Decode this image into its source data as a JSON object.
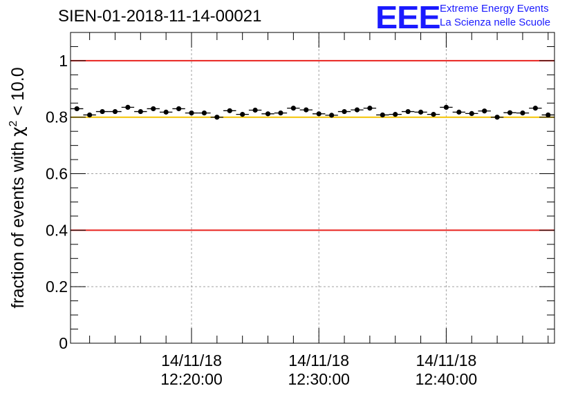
{
  "header": {
    "title": "SIEN-01-2018-11-14-00021",
    "logo_mark": "EEE",
    "logo_line1": "Extreme Energy Events",
    "logo_line2": "La Scienza nelle Scuole"
  },
  "chart_data": {
    "type": "scatter",
    "title": "SIEN-01-2018-11-14-00021",
    "xlabel": "",
    "ylabel": "fraction of events with χ² < 10.0",
    "ylabel_parts": {
      "prefix": "fraction of events with ",
      "symbol": "χ",
      "sup": "2",
      "suffix": " < 10.0"
    },
    "xlim": [
      0,
      38
    ],
    "ylim": [
      0,
      1.1
    ],
    "yticks": [
      0,
      0.2,
      0.4,
      0.6,
      0.8,
      1
    ],
    "ytick_labels": [
      "0",
      "0.2",
      "0.4",
      "0.6",
      "0.8",
      "1"
    ],
    "xticks": [
      {
        "x": 9.5,
        "line1": "14/11/18",
        "line2": "12:20:00"
      },
      {
        "x": 19.5,
        "line1": "14/11/18",
        "line2": "12:30:00"
      },
      {
        "x": 29.5,
        "line1": "14/11/18",
        "line2": "12:40:00"
      }
    ],
    "grid": true,
    "reference_lines": [
      {
        "y": 1.0,
        "color": "#e8201c"
      },
      {
        "y": 0.8,
        "color": "#f5c400"
      },
      {
        "y": 0.4,
        "color": "#e8201c"
      }
    ],
    "series": [
      {
        "name": "fraction",
        "x": [
          0.5,
          1.5,
          2.5,
          3.5,
          4.5,
          5.5,
          6.5,
          7.5,
          8.5,
          9.5,
          10.5,
          11.5,
          12.5,
          13.5,
          14.5,
          15.5,
          16.5,
          17.5,
          18.5,
          19.5,
          20.5,
          21.5,
          22.5,
          23.5,
          24.5,
          25.5,
          26.5,
          27.5,
          28.5,
          29.5,
          30.5,
          31.5,
          32.5,
          33.5,
          34.5,
          35.5,
          36.5,
          37.5
        ],
        "values": [
          0.83,
          0.808,
          0.82,
          0.82,
          0.835,
          0.82,
          0.83,
          0.818,
          0.83,
          0.815,
          0.815,
          0.8,
          0.823,
          0.81,
          0.825,
          0.812,
          0.815,
          0.832,
          0.826,
          0.812,
          0.807,
          0.82,
          0.826,
          0.832,
          0.808,
          0.81,
          0.82,
          0.818,
          0.81,
          0.835,
          0.818,
          0.813,
          0.822,
          0.8,
          0.816,
          0.815,
          0.832,
          0.808
        ],
        "errors": [
          0.006,
          0.006,
          0.006,
          0.006,
          0.006,
          0.006,
          0.006,
          0.006,
          0.006,
          0.006,
          0.006,
          0.006,
          0.006,
          0.006,
          0.006,
          0.006,
          0.006,
          0.006,
          0.006,
          0.006,
          0.006,
          0.006,
          0.006,
          0.006,
          0.006,
          0.006,
          0.006,
          0.006,
          0.006,
          0.006,
          0.006,
          0.006,
          0.006,
          0.006,
          0.006,
          0.006,
          0.006,
          0.006
        ]
      }
    ]
  }
}
